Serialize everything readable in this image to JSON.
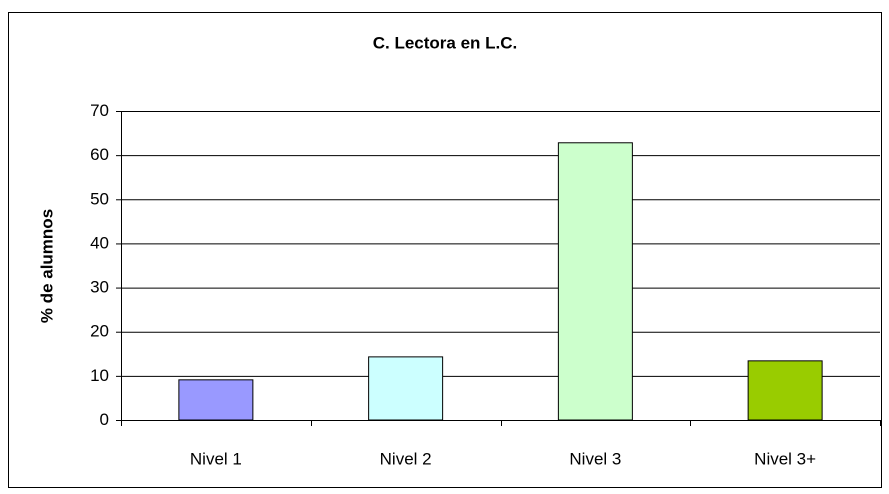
{
  "chart_data": {
    "type": "bar",
    "title": "C. Lectora en L.C.",
    "y_label": "% de alumnos",
    "categories": [
      "Nivel 1",
      "Nivel 2",
      "Nivel 3",
      "Nivel 3+"
    ],
    "values": [
      9.1,
      14.3,
      62.8,
      13.4
    ],
    "colors": [
      "#9999ff",
      "#ccffff",
      "#ccffcc",
      "#99cc00"
    ],
    "ylim": [
      0,
      70
    ],
    "yticks": [
      0,
      10,
      20,
      30,
      40,
      50,
      60,
      70
    ],
    "grid": true
  }
}
